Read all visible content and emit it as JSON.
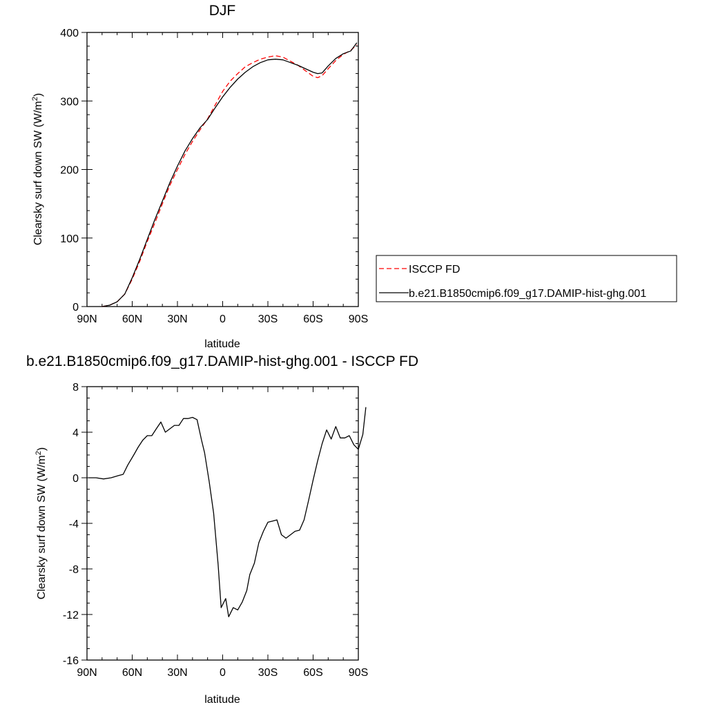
{
  "chart_data": [
    {
      "type": "line",
      "title": "DJF",
      "xlabel": "latitude",
      "ylabel_main": "Clearsky surf down SW (W/m",
      "ylabel_sup": "2",
      "ylabel_end": ")",
      "xlim": [
        90,
        -90
      ],
      "ylim": [
        0,
        400
      ],
      "xticks": [
        {
          "v": 90,
          "label": "90N"
        },
        {
          "v": 60,
          "label": "60N"
        },
        {
          "v": 30,
          "label": "30N"
        },
        {
          "v": 0,
          "label": "0"
        },
        {
          "v": -30,
          "label": "30S"
        },
        {
          "v": -60,
          "label": "60S"
        },
        {
          "v": -90,
          "label": "90S"
        }
      ],
      "yticks": [
        {
          "v": 0,
          "label": "0"
        },
        {
          "v": 100,
          "label": "100"
        },
        {
          "v": 200,
          "label": "200"
        },
        {
          "v": 300,
          "label": "300"
        },
        {
          "v": 400,
          "label": "400"
        }
      ],
      "legend_position": "outside-right",
      "series": [
        {
          "name": "ISCCP FD",
          "color": "#ff0000",
          "dash": "dashed",
          "points": [
            [
              80,
              0
            ],
            [
              75,
              2
            ],
            [
              70,
              7
            ],
            [
              65,
              18
            ],
            [
              60,
              40
            ],
            [
              55,
              66
            ],
            [
              50,
              95
            ],
            [
              45,
              122
            ],
            [
              40,
              150
            ],
            [
              35,
              177
            ],
            [
              30,
              200
            ],
            [
              25,
              222
            ],
            [
              20,
              241
            ],
            [
              15,
              258
            ],
            [
              10,
              274
            ],
            [
              5,
              294
            ],
            [
              0,
              314
            ],
            [
              -5,
              329
            ],
            [
              -10,
              340
            ],
            [
              -15,
              350
            ],
            [
              -20,
              356
            ],
            [
              -25,
              361
            ],
            [
              -30,
              364
            ],
            [
              -35,
              366
            ],
            [
              -40,
              364
            ],
            [
              -45,
              358
            ],
            [
              -50,
              352
            ],
            [
              -55,
              344
            ],
            [
              -60,
              336
            ],
            [
              -63,
              334
            ],
            [
              -66,
              337
            ],
            [
              -70,
              347
            ],
            [
              -75,
              359
            ],
            [
              -80,
              368
            ],
            [
              -85,
              374
            ],
            [
              -89,
              382
            ]
          ]
        },
        {
          "name": "b.e21.B1850cmip6.f09_g17.DAMIP-hist-ghg.001",
          "color": "#000000",
          "dash": "solid",
          "points": [
            [
              80,
              0
            ],
            [
              75,
              2
            ],
            [
              70,
              7
            ],
            [
              65,
              18
            ],
            [
              60,
              42
            ],
            [
              55,
              69
            ],
            [
              50,
              98
            ],
            [
              45,
              127
            ],
            [
              40,
              154
            ],
            [
              35,
              181
            ],
            [
              30,
              205
            ],
            [
              25,
              227
            ],
            [
              20,
              245
            ],
            [
              15,
              261
            ],
            [
              10,
              273
            ],
            [
              5,
              290
            ],
            [
              0,
              306
            ],
            [
              -5,
              320
            ],
            [
              -10,
              332
            ],
            [
              -15,
              342
            ],
            [
              -20,
              350
            ],
            [
              -25,
              356
            ],
            [
              -30,
              360
            ],
            [
              -35,
              361
            ],
            [
              -40,
              360
            ],
            [
              -45,
              356
            ],
            [
              -50,
              352
            ],
            [
              -55,
              347
            ],
            [
              -60,
              342
            ],
            [
              -63,
              340
            ],
            [
              -66,
              341
            ],
            [
              -70,
              351
            ],
            [
              -75,
              362
            ],
            [
              -80,
              369
            ],
            [
              -85,
              373
            ],
            [
              -89,
              385
            ]
          ]
        }
      ]
    },
    {
      "type": "line",
      "title": "b.e21.B1850cmip6.f09_g17.DAMIP-hist-ghg.001 - ISCCP FD",
      "xlabel": "latitude",
      "ylabel_main": "Clearsky surf down SW (W/m",
      "ylabel_sup": "2",
      "ylabel_end": ")",
      "xlim": [
        90,
        -90
      ],
      "ylim": [
        -16,
        8
      ],
      "xticks": [
        {
          "v": 90,
          "label": "90N"
        },
        {
          "v": 60,
          "label": "60N"
        },
        {
          "v": 30,
          "label": "30N"
        },
        {
          "v": 0,
          "label": "0"
        },
        {
          "v": -30,
          "label": "30S"
        },
        {
          "v": -60,
          "label": "60S"
        },
        {
          "v": -90,
          "label": "90S"
        }
      ],
      "yticks": [
        {
          "v": -16,
          "label": "-16"
        },
        {
          "v": -12,
          "label": "-12"
        },
        {
          "v": -8,
          "label": "-8"
        },
        {
          "v": -4,
          "label": "-4"
        },
        {
          "v": 0,
          "label": "0"
        },
        {
          "v": 4,
          "label": "4"
        },
        {
          "v": 8,
          "label": "8"
        }
      ],
      "series": [
        {
          "color": "#000000",
          "dash": "solid",
          "points": [
            [
              89,
              0
            ],
            [
              84,
              0
            ],
            [
              79,
              -0.1
            ],
            [
              74,
              0
            ],
            [
              69,
              0.2
            ],
            [
              66,
              0.3
            ],
            [
              63,
              1.1
            ],
            [
              59,
              2.0
            ],
            [
              56,
              2.7
            ],
            [
              53,
              3.3
            ],
            [
              50,
              3.7
            ],
            [
              47,
              3.7
            ],
            [
              44,
              4.3
            ],
            [
              41,
              4.9
            ],
            [
              38,
              4.0
            ],
            [
              35,
              4.3
            ],
            [
              32,
              4.6
            ],
            [
              29,
              4.6
            ],
            [
              26,
              5.2
            ],
            [
              23,
              5.2
            ],
            [
              20,
              5.3
            ],
            [
              17,
              5.1
            ],
            [
              14,
              3.3
            ],
            [
              12,
              2.2
            ],
            [
              9,
              -0.3
            ],
            [
              6,
              -3.1
            ],
            [
              3,
              -7.6
            ],
            [
              1,
              -11.4
            ],
            [
              -2,
              -10.6
            ],
            [
              -4,
              -12.2
            ],
            [
              -7,
              -11.4
            ],
            [
              -10,
              -11.6
            ],
            [
              -13,
              -10.9
            ],
            [
              -16,
              -9.9
            ],
            [
              -18,
              -8.5
            ],
            [
              -21,
              -7.5
            ],
            [
              -24,
              -5.7
            ],
            [
              -27,
              -4.7
            ],
            [
              -30,
              -3.9
            ],
            [
              -33,
              -3.8
            ],
            [
              -36,
              -3.7
            ],
            [
              -39,
              -5.0
            ],
            [
              -42,
              -5.3
            ],
            [
              -45,
              -5.0
            ],
            [
              -48,
              -4.7
            ],
            [
              -51,
              -4.6
            ],
            [
              -54,
              -3.7
            ],
            [
              -57,
              -2.0
            ],
            [
              -60,
              -0.2
            ],
            [
              -63,
              1.5
            ],
            [
              -66,
              3.0
            ],
            [
              -69,
              4.2
            ],
            [
              -72,
              3.4
            ],
            [
              -75,
              4.5
            ],
            [
              -78,
              3.5
            ],
            [
              -81,
              3.5
            ],
            [
              -84,
              3.7
            ],
            [
              -87,
              2.9
            ],
            [
              -90,
              2.5
            ],
            [
              -93,
              3.8
            ],
            [
              -95,
              6.2
            ]
          ]
        }
      ]
    }
  ]
}
